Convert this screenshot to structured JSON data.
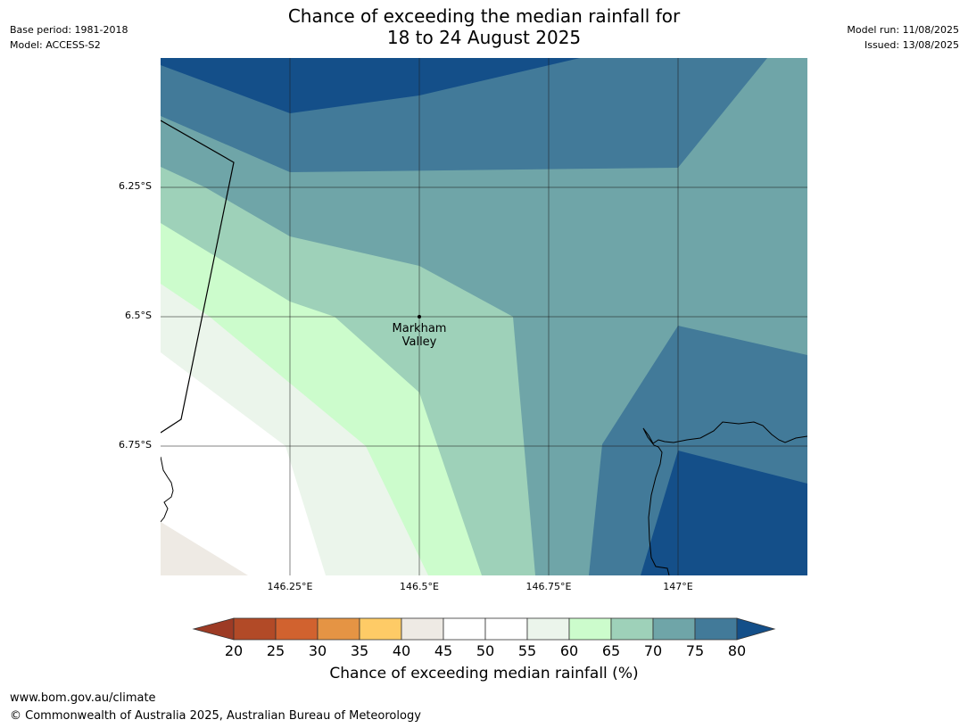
{
  "header": {
    "base_period": "Base period: 1981-2018",
    "model": "Model: ACCESS-S2",
    "model_run": "Model run: 11/08/2025",
    "issued": "Issued: 13/08/2025",
    "title_line1": "Chance of exceeding the median rainfall for",
    "title_line2": "18 to 24 August 2025"
  },
  "map": {
    "lat_ticks": [
      "6.25°S",
      "6.5°S",
      "6.75°S"
    ],
    "lon_ticks": [
      "146.25°E",
      "146.5°E",
      "146.75°E",
      "147°E"
    ],
    "place": {
      "name_line1": "Markham",
      "name_line2": "Valley",
      "lat": -6.5,
      "lon": 146.5
    },
    "bands": [
      {
        "range": "40-45",
        "color": "#eeeae4"
      },
      {
        "range": "45-55",
        "color": "#ffffff"
      },
      {
        "range": "55-60",
        "color": "#ebf5eb"
      },
      {
        "range": "60-65",
        "color": "#ccfccc"
      },
      {
        "range": "65-70",
        "color": "#9ed1b9"
      },
      {
        "range": "70-75",
        "color": "#6fa5a8"
      },
      {
        "range": "75-80",
        "color": "#427a99"
      },
      {
        "range": ">80",
        "color": "#144f89"
      }
    ]
  },
  "colorbar": {
    "labels": [
      "20",
      "25",
      "30",
      "35",
      "40",
      "45",
      "50",
      "55",
      "60",
      "65",
      "70",
      "75",
      "80"
    ],
    "colors": [
      "#b24a27",
      "#d1622f",
      "#e59444",
      "#fecb66",
      "#eeeae4",
      "#ffffff",
      "#ffffff",
      "#ebf5eb",
      "#ccfccc",
      "#9ed1b9",
      "#6fa5a8",
      "#427a99"
    ],
    "under_color": "#9d3b25",
    "over_color": "#144f89",
    "title": "Chance of exceeding median rainfall (%)"
  },
  "footer": {
    "url": "www.bom.gov.au/climate",
    "copyright": "© Commonwealth of Australia 2025, Australian Bureau of Meteorology"
  }
}
